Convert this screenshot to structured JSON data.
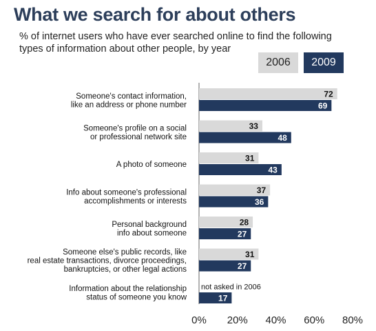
{
  "title": "What we search for about others",
  "subtitle": "% of internet users who have ever searched online to find the following types of information about other people, by year",
  "legend": [
    {
      "name": "2006",
      "color": "#d9d9d9"
    },
    {
      "name": "2009",
      "color": "#22395e"
    }
  ],
  "chart_data": {
    "type": "bar",
    "orientation": "horizontal",
    "categories": [
      [
        "Someone's contact information,",
        "like an address or phone number"
      ],
      [
        "Someone's profile on a social",
        "or professional network site"
      ],
      [
        "A photo of someone"
      ],
      [
        "Info about someone's professional",
        "accomplishments or interests"
      ],
      [
        "Personal background",
        "info about someone"
      ],
      [
        "Someone else's public records, like",
        "real estate transactions, divorce proceedings,",
        "bankruptcies, or other legal actions"
      ],
      [
        "Information about the relationship",
        "status of someone you know"
      ]
    ],
    "series": [
      {
        "name": "2006",
        "color": "#d9d9d9",
        "values": [
          72,
          33,
          31,
          37,
          28,
          31,
          null
        ]
      },
      {
        "name": "2009",
        "color": "#22395e",
        "values": [
          69,
          48,
          43,
          36,
          27,
          27,
          17
        ]
      }
    ],
    "annotations": [
      {
        "category_index": 6,
        "series": "2006",
        "text": "not asked in 2006"
      }
    ],
    "xlim": [
      0,
      80
    ],
    "xticks": [
      "0%",
      "20%",
      "40%",
      "60%",
      "80%"
    ],
    "grid": false,
    "legend_position": "top-right"
  }
}
